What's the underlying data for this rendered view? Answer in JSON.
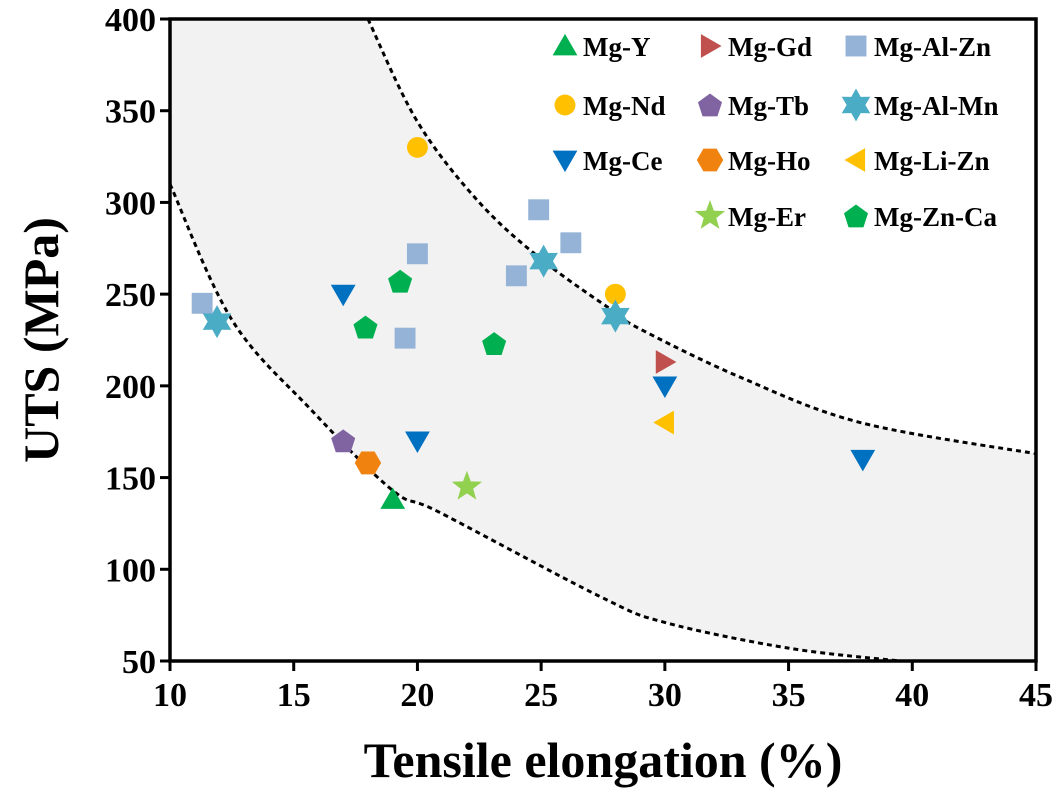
{
  "chart_data": {
    "type": "scatter",
    "title": "",
    "xlabel": "Tensile elongation (%)",
    "ylabel": "UTS (MPa)",
    "xlim": [
      10,
      45
    ],
    "ylim": [
      50,
      400
    ],
    "xticks": [
      "10",
      "15",
      "20",
      "25",
      "30",
      "35",
      "40",
      "45"
    ],
    "yticks": [
      "50",
      "100",
      "150",
      "200",
      "250",
      "300",
      "350",
      "400"
    ],
    "grid": false,
    "legend_position": "top-right",
    "legend_columns": [
      [
        "Mg-Y",
        "Mg-Nd",
        "Mg-Ce",
        ""
      ],
      [
        "Mg-Gd",
        "Mg-Tb",
        "Mg-Ho",
        "Mg-Er"
      ],
      [
        "Mg-Al-Zn",
        "Mg-Al-Mn",
        "Mg-Li-Zn",
        "Mg-Zn-Ca"
      ]
    ],
    "series": [
      {
        "name": "Mg-Y",
        "marker": "triangle-up",
        "color": "#00B050",
        "points": [
          [
            19.0,
            138
          ]
        ]
      },
      {
        "name": "Mg-Nd",
        "marker": "circle",
        "color": "#FFC000",
        "points": [
          [
            20.0,
            330
          ],
          [
            28.0,
            250
          ]
        ]
      },
      {
        "name": "Mg-Ce",
        "marker": "triangle-down",
        "color": "#0070C0",
        "points": [
          [
            17.0,
            250
          ],
          [
            20.0,
            170
          ],
          [
            30.0,
            200
          ],
          [
            38.0,
            160
          ]
        ]
      },
      {
        "name": "Mg-Gd",
        "marker": "triangle-right",
        "color": "#C0504D",
        "points": [
          [
            30.0,
            213
          ]
        ]
      },
      {
        "name": "Mg-Tb",
        "marker": "pentagon",
        "color": "#8064A2",
        "points": [
          [
            17.0,
            170
          ]
        ]
      },
      {
        "name": "Mg-Ho",
        "marker": "hexagon",
        "color": "#F0820F",
        "points": [
          [
            18.0,
            158
          ]
        ]
      },
      {
        "name": "Mg-Er",
        "marker": "star5",
        "color": "#92D050",
        "points": [
          [
            22.0,
            145
          ]
        ]
      },
      {
        "name": "Mg-Al-Zn",
        "marker": "square",
        "color": "#95B3D7",
        "points": [
          [
            11.3,
            245
          ],
          [
            19.5,
            226
          ],
          [
            20.0,
            272
          ],
          [
            24.0,
            260
          ],
          [
            24.9,
            296
          ],
          [
            26.2,
            278
          ]
        ]
      },
      {
        "name": "Mg-Al-Mn",
        "marker": "star6",
        "color": "#4BACC6",
        "points": [
          [
            11.9,
            235
          ],
          [
            25.1,
            268
          ],
          [
            28.0,
            238
          ]
        ]
      },
      {
        "name": "Mg-Li-Zn",
        "marker": "triangle-left",
        "color": "#FFC000",
        "points": [
          [
            30.0,
            180
          ]
        ]
      },
      {
        "name": "Mg-Zn-Ca",
        "marker": "pentagon",
        "color": "#00B050",
        "points": [
          [
            17.9,
            232
          ],
          [
            19.3,
            257
          ],
          [
            23.1,
            223
          ]
        ]
      }
    ],
    "band": {
      "fill": "#F2F2F2",
      "upper_curve": [
        [
          18.0,
          400
        ],
        [
          20.0,
          344
        ],
        [
          22.5,
          300
        ],
        [
          25.1,
          268
        ],
        [
          28.0,
          240
        ],
        [
          29.0,
          231
        ],
        [
          33.0,
          205
        ],
        [
          37.9,
          180
        ],
        [
          45.0,
          163
        ]
      ],
      "lower_curve": [
        [
          10.0,
          310
        ],
        [
          12.5,
          236
        ],
        [
          15.7,
          187
        ],
        [
          19.0,
          143
        ],
        [
          20.9,
          131
        ],
        [
          27.4,
          85
        ],
        [
          30.0,
          71
        ],
        [
          35.0,
          57
        ],
        [
          39.5,
          50
        ]
      ]
    }
  }
}
